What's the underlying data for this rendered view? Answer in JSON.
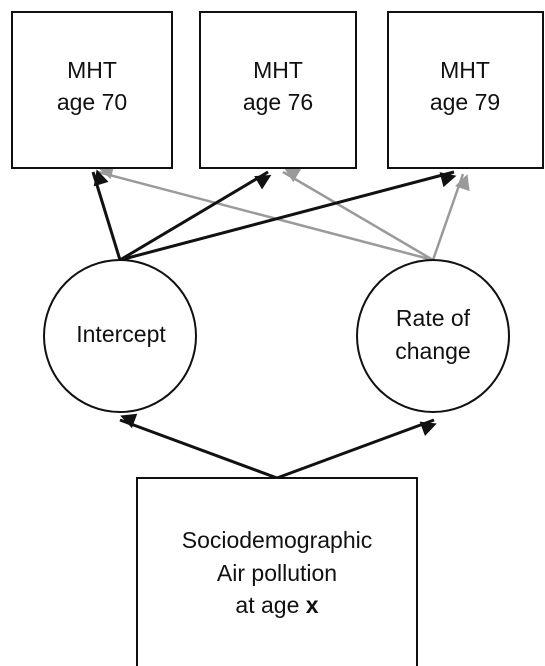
{
  "outcomes": [
    {
      "line1": "MHT",
      "line2": "age 70"
    },
    {
      "line1": "MHT",
      "line2": "age 76"
    },
    {
      "line1": "MHT",
      "line2": "age 79"
    }
  ],
  "latent": [
    {
      "label": "Intercept"
    },
    {
      "line1": "Rate of",
      "line2": "change"
    }
  ],
  "predictor": {
    "line1": "Sociodemographic",
    "line2": "Air pollution",
    "line3": "at age ",
    "bold": "x"
  }
}
